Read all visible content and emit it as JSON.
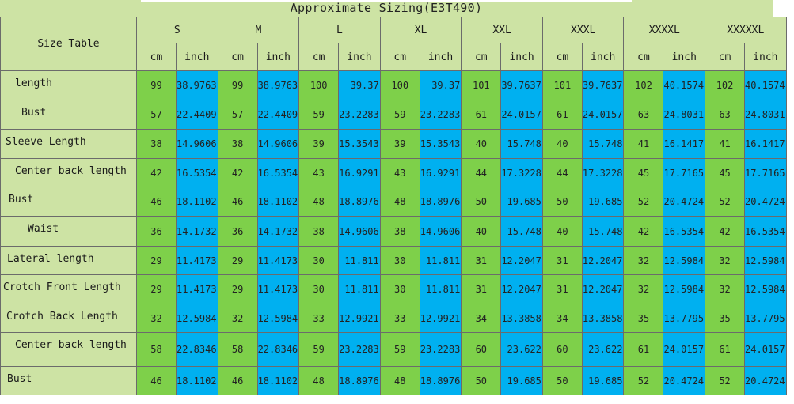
{
  "title": "Approximate Sizing(E3T490)",
  "corner_label": "Size Table",
  "sizes": [
    "S",
    "M",
    "L",
    "XL",
    "XXL",
    "XXXL",
    "XXXXL",
    "XXXXXL"
  ],
  "units": {
    "cm": "cm",
    "inch": "inch"
  },
  "rows": [
    {
      "label": "length",
      "values": [
        [
          "99",
          "38.9763"
        ],
        [
          "99",
          "38.9763"
        ],
        [
          "100",
          "39.37"
        ],
        [
          "100",
          "39.37"
        ],
        [
          "101",
          "39.7637"
        ],
        [
          "101",
          "39.7637"
        ],
        [
          "102",
          "40.1574"
        ],
        [
          "102",
          "40.1574"
        ]
      ]
    },
    {
      "label": "Bust",
      "values": [
        [
          "57",
          "22.4409"
        ],
        [
          "57",
          "22.4409"
        ],
        [
          "59",
          "23.2283"
        ],
        [
          "59",
          "23.2283"
        ],
        [
          "61",
          "24.0157"
        ],
        [
          "61",
          "24.0157"
        ],
        [
          "63",
          "24.8031"
        ],
        [
          "63",
          "24.8031"
        ]
      ]
    },
    {
      "label": "Sleeve Length",
      "values": [
        [
          "38",
          "14.9606"
        ],
        [
          "38",
          "14.9606"
        ],
        [
          "39",
          "15.3543"
        ],
        [
          "39",
          "15.3543"
        ],
        [
          "40",
          "15.748"
        ],
        [
          "40",
          "15.748"
        ],
        [
          "41",
          "16.1417"
        ],
        [
          "41",
          "16.1417"
        ]
      ]
    },
    {
      "label": "Center back length",
      "values": [
        [
          "42",
          "16.5354"
        ],
        [
          "42",
          "16.5354"
        ],
        [
          "43",
          "16.9291"
        ],
        [
          "43",
          "16.9291"
        ],
        [
          "44",
          "17.3228"
        ],
        [
          "44",
          "17.3228"
        ],
        [
          "45",
          "17.7165"
        ],
        [
          "45",
          "17.7165"
        ]
      ]
    },
    {
      "label": "Bust",
      "values": [
        [
          "46",
          "18.1102"
        ],
        [
          "46",
          "18.1102"
        ],
        [
          "48",
          "18.8976"
        ],
        [
          "48",
          "18.8976"
        ],
        [
          "50",
          "19.685"
        ],
        [
          "50",
          "19.685"
        ],
        [
          "52",
          "20.4724"
        ],
        [
          "52",
          "20.4724"
        ]
      ]
    },
    {
      "label": "Waist",
      "values": [
        [
          "36",
          "14.1732"
        ],
        [
          "36",
          "14.1732"
        ],
        [
          "38",
          "14.9606"
        ],
        [
          "38",
          "14.9606"
        ],
        [
          "40",
          "15.748"
        ],
        [
          "40",
          "15.748"
        ],
        [
          "42",
          "16.5354"
        ],
        [
          "42",
          "16.5354"
        ]
      ]
    },
    {
      "label": "Lateral length",
      "values": [
        [
          "29",
          "11.4173"
        ],
        [
          "29",
          "11.4173"
        ],
        [
          "30",
          "11.811"
        ],
        [
          "30",
          "11.811"
        ],
        [
          "31",
          "12.2047"
        ],
        [
          "31",
          "12.2047"
        ],
        [
          "32",
          "12.5984"
        ],
        [
          "32",
          "12.5984"
        ]
      ]
    },
    {
      "label": "Crotch Front Length",
      "values": [
        [
          "29",
          "11.4173"
        ],
        [
          "29",
          "11.4173"
        ],
        [
          "30",
          "11.811"
        ],
        [
          "30",
          "11.811"
        ],
        [
          "31",
          "12.2047"
        ],
        [
          "31",
          "12.2047"
        ],
        [
          "32",
          "12.5984"
        ],
        [
          "32",
          "12.5984"
        ]
      ]
    },
    {
      "label": "Crotch Back Length",
      "values": [
        [
          "32",
          "12.5984"
        ],
        [
          "32",
          "12.5984"
        ],
        [
          "33",
          "12.9921"
        ],
        [
          "33",
          "12.9921"
        ],
        [
          "34",
          "13.3858"
        ],
        [
          "34",
          "13.3858"
        ],
        [
          "35",
          "13.7795"
        ],
        [
          "35",
          "13.7795"
        ]
      ]
    },
    {
      "label": "Center back length",
      "values": [
        [
          "58",
          "22.8346"
        ],
        [
          "58",
          "22.8346"
        ],
        [
          "59",
          "23.2283"
        ],
        [
          "59",
          "23.2283"
        ],
        [
          "60",
          "23.622"
        ],
        [
          "60",
          "23.622"
        ],
        [
          "61",
          "24.0157"
        ],
        [
          "61",
          "24.0157"
        ]
      ]
    },
    {
      "label": "Bust",
      "values": [
        [
          "46",
          "18.1102"
        ],
        [
          "46",
          "18.1102"
        ],
        [
          "48",
          "18.8976"
        ],
        [
          "48",
          "18.8976"
        ],
        [
          "50",
          "19.685"
        ],
        [
          "50",
          "19.685"
        ],
        [
          "52",
          "20.4724"
        ],
        [
          "52",
          "20.4724"
        ]
      ]
    }
  ]
}
